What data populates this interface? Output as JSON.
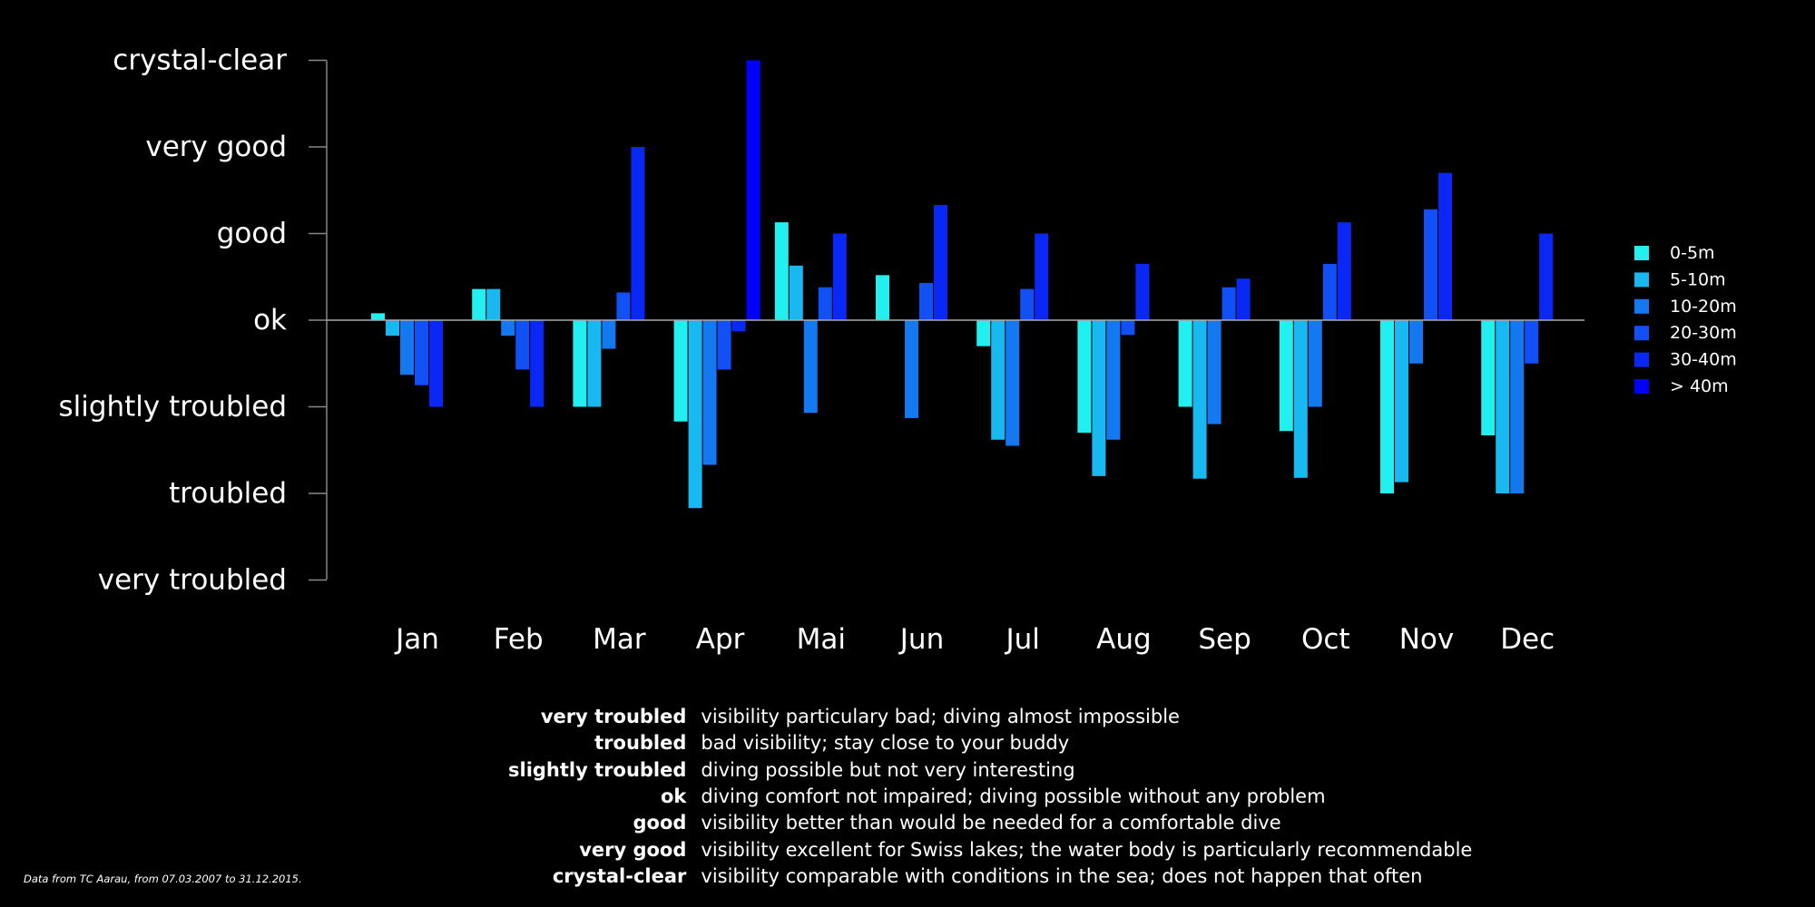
{
  "chart_data": {
    "type": "bar",
    "categories": [
      "Jan",
      "Feb",
      "Mar",
      "Apr",
      "Mai",
      "Jun",
      "Jul",
      "Aug",
      "Sep",
      "Oct",
      "Nov",
      "Dec"
    ],
    "y_tick_labels": [
      "very troubled",
      "troubled",
      "slightly troubled",
      "ok",
      "good",
      "very good",
      "crystal-clear"
    ],
    "y_tick_values": [
      -3,
      -2,
      -1,
      0,
      1,
      2,
      3
    ],
    "ylim": [
      -3,
      3
    ],
    "baseline": 0,
    "legend_position": "right",
    "series": [
      {
        "name": "0-5m",
        "color": "#22f0f0",
        "values": [
          0.08,
          0.36,
          -1.0,
          -1.17,
          1.13,
          0.52,
          -0.3,
          -1.3,
          -1.0,
          -1.28,
          -2.0,
          -1.33
        ]
      },
      {
        "name": "5-10m",
        "color": "#18b8f0",
        "values": [
          -0.18,
          0.36,
          -1.0,
          -2.17,
          0.63,
          null,
          -1.38,
          -1.8,
          -1.83,
          -1.82,
          -1.87,
          -2.0
        ]
      },
      {
        "name": "10-20m",
        "color": "#1478f0",
        "values": [
          -0.63,
          -0.18,
          -0.33,
          -1.67,
          -1.07,
          -1.13,
          -1.45,
          -1.38,
          -1.2,
          -1.0,
          -0.5,
          -2.0
        ]
      },
      {
        "name": "20-30m",
        "color": "#1050f5",
        "values": [
          -0.75,
          -0.57,
          0.32,
          -0.57,
          0.38,
          0.43,
          0.36,
          -0.17,
          0.38,
          0.65,
          1.28,
          -0.5
        ]
      },
      {
        "name": "30-40m",
        "color": "#0a28f5",
        "values": [
          -1.0,
          -1.0,
          2.0,
          -0.13,
          1.0,
          1.33,
          1.0,
          0.65,
          0.48,
          1.13,
          1.7,
          1.0
        ]
      },
      {
        "name": "> 40m",
        "color": "#0000ff",
        "values": [
          null,
          null,
          null,
          3.0,
          null,
          null,
          null,
          null,
          null,
          null,
          null,
          null
        ]
      }
    ]
  },
  "definitions": [
    {
      "term": "very troubled",
      "description": "visibility particulary bad; diving almost impossible"
    },
    {
      "term": "troubled",
      "description": "bad visibility; stay close to your buddy"
    },
    {
      "term": "slightly troubled",
      "description": "diving possible but not very interesting"
    },
    {
      "term": "ok",
      "description": "diving comfort not impaired; diving possible without any problem"
    },
    {
      "term": "good",
      "description": "visibility better than would be needed for a comfortable dive"
    },
    {
      "term": "very good",
      "description": "visibility excellent for Swiss lakes; the water body is particularly recommendable"
    },
    {
      "term": "crystal-clear",
      "description": "visibility comparable with conditions in the sea; does not happen that often"
    }
  ],
  "source_note": "Data from TC Aarau, from 07.03.2007 to 31.12.2015."
}
